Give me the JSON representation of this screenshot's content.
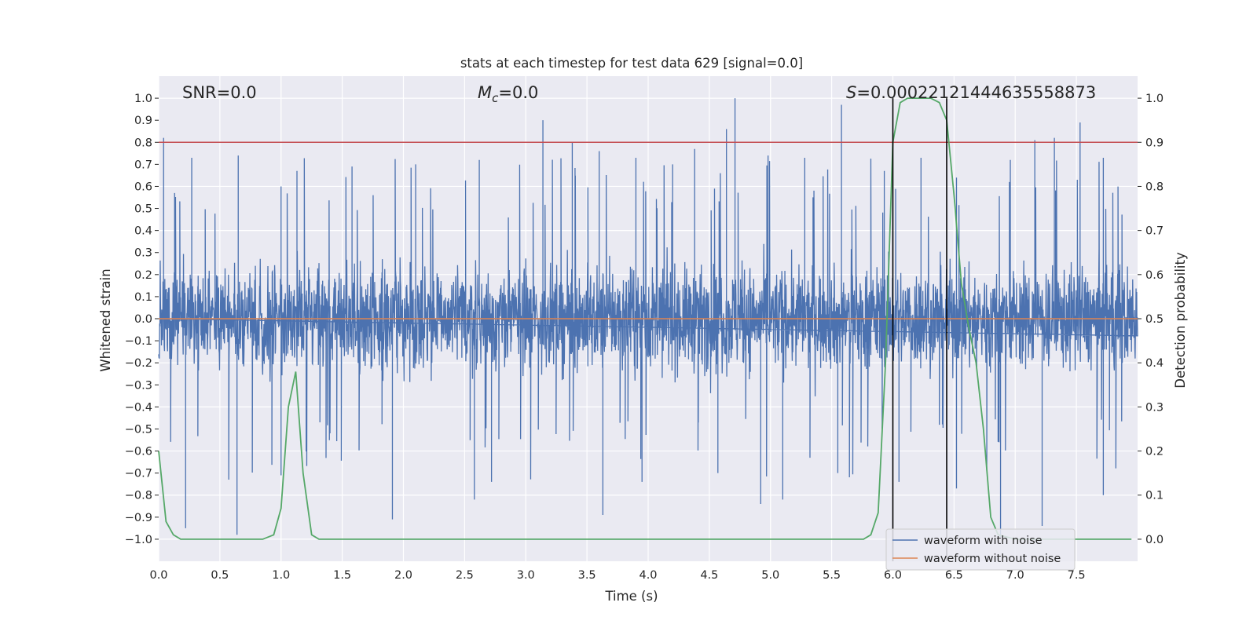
{
  "chart_data": {
    "type": "line",
    "title": "stats at each timestep for test data 629 [signal=0.0]",
    "xlabel": "Time (s)",
    "ylabel_left": "Whitened strain",
    "ylabel_right": "Detection probability",
    "xlim": [
      0.0,
      8.0
    ],
    "ylim_left": [
      -1.1,
      1.1
    ],
    "ylim_right": [
      -0.05,
      1.05
    ],
    "x_ticks": [
      "0.0",
      "0.5",
      "1.0",
      "1.5",
      "2.0",
      "2.5",
      "3.0",
      "3.5",
      "4.0",
      "4.5",
      "5.0",
      "5.5",
      "6.0",
      "6.5",
      "7.0",
      "7.5"
    ],
    "y_ticks_left": [
      "1.0",
      "0.9",
      "0.8",
      "0.7",
      "0.6",
      "0.5",
      "0.4",
      "0.3",
      "0.2",
      "0.1",
      "0.0",
      "-0.1",
      "-0.2",
      "-0.3",
      "-0.4",
      "-0.5",
      "-0.6",
      "-0.7",
      "-0.8",
      "-0.9",
      "-1.0"
    ],
    "y_ticks_right": [
      "1.0",
      "0.9",
      "0.8",
      "0.7",
      "0.6",
      "0.5",
      "0.4",
      "0.3",
      "0.2",
      "0.1",
      "0.0"
    ],
    "grid": true,
    "legend_position": "lower-right",
    "annotations": {
      "snr": "SNR=0.0",
      "mc_symbol": "M",
      "mc_sub": "c",
      "mc_value": "=0.0",
      "s_symbol": "S",
      "s_value": "=0.00022121444635558873"
    },
    "threshold_line": {
      "value": 0.8,
      "axis": "left",
      "color": "#c44e52"
    },
    "detection_window": {
      "x_start": 6.0,
      "x_end": 6.44
    },
    "series": [
      {
        "name": "waveform with noise",
        "color": "#4c72b0",
        "axis": "left",
        "description": "noisy whitened strain, amplitude mostly within ±0.4, peaks to ±1.0",
        "peaks_up": [
          [
            0.04,
            0.82
          ],
          [
            0.27,
            0.73
          ],
          [
            0.65,
            0.74
          ],
          [
            1.0,
            0.6
          ],
          [
            1.13,
            0.67
          ],
          [
            1.58,
            0.69
          ],
          [
            2.1,
            0.7
          ],
          [
            2.62,
            0.72
          ],
          [
            3.14,
            0.9
          ],
          [
            3.38,
            0.8
          ],
          [
            3.6,
            0.76
          ],
          [
            3.9,
            0.73
          ],
          [
            4.2,
            0.7
          ],
          [
            4.38,
            0.77
          ],
          [
            4.64,
            0.86
          ],
          [
            4.71,
            1.0
          ],
          [
            4.98,
            0.74
          ],
          [
            5.28,
            0.73
          ],
          [
            5.58,
            0.97
          ],
          [
            5.93,
            0.67
          ],
          [
            6.23,
            0.73
          ],
          [
            6.52,
            0.64
          ],
          [
            6.96,
            0.72
          ],
          [
            7.16,
            0.81
          ],
          [
            7.32,
            0.82
          ],
          [
            7.53,
            0.89
          ],
          [
            7.72,
            0.73
          ]
        ],
        "peaks_down": [
          [
            0.22,
            -0.95
          ],
          [
            0.64,
            -0.98
          ],
          [
            1.0,
            -0.71
          ],
          [
            1.91,
            -0.91
          ],
          [
            2.58,
            -0.82
          ],
          [
            2.72,
            -0.74
          ],
          [
            3.63,
            -0.89
          ],
          [
            3.95,
            -0.74
          ],
          [
            4.57,
            -0.7
          ],
          [
            4.92,
            -0.84
          ],
          [
            5.1,
            -0.82
          ],
          [
            5.55,
            -0.7
          ],
          [
            6.05,
            -0.74
          ],
          [
            6.52,
            -0.77
          ],
          [
            6.88,
            -0.99
          ],
          [
            7.22,
            -0.94
          ],
          [
            7.72,
            -0.8
          ]
        ]
      },
      {
        "name": "waveform without noise",
        "color": "#dd8452",
        "axis": "left",
        "x": [
          0.0,
          8.0
        ],
        "y": [
          0.0,
          0.0
        ]
      },
      {
        "name": "detection probability",
        "color": "#55a868",
        "axis": "right",
        "x": [
          0.0,
          0.06,
          0.12,
          0.18,
          0.25,
          0.5,
          0.75,
          0.85,
          0.94,
          1.0,
          1.06,
          1.12,
          1.18,
          1.25,
          1.31,
          1.5,
          2.0,
          3.0,
          4.0,
          5.0,
          5.6,
          5.76,
          5.82,
          5.88,
          5.94,
          6.0,
          6.06,
          6.12,
          6.18,
          6.25,
          6.31,
          6.38,
          6.44,
          6.5,
          6.56,
          6.62,
          6.68,
          6.74,
          6.8,
          6.86,
          7.0,
          7.5,
          7.95
        ],
        "y": [
          0.2,
          0.04,
          0.01,
          0.0,
          0.0,
          0.0,
          0.0,
          0.0,
          0.01,
          0.07,
          0.3,
          0.38,
          0.15,
          0.01,
          0.0,
          0.0,
          0.0,
          0.0,
          0.0,
          0.0,
          0.0,
          0.0,
          0.01,
          0.06,
          0.4,
          0.9,
          0.99,
          1.0,
          1.0,
          1.0,
          1.0,
          0.99,
          0.95,
          0.78,
          0.58,
          0.48,
          0.4,
          0.25,
          0.05,
          0.01,
          0.0,
          0.0,
          0.0
        ]
      }
    ]
  }
}
